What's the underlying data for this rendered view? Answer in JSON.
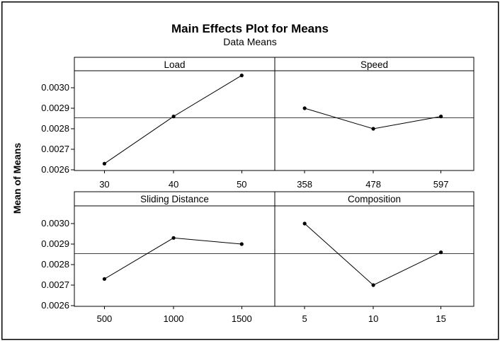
{
  "chart_data": {
    "type": "line",
    "title": "Main Effects Plot for Means",
    "subtitle": "Data Means",
    "ylabel": "Mean of Means",
    "xlabel": "",
    "grid": false,
    "legend": false,
    "layout_hint": "2x2 trellis of main-effects panels sharing one y-axis; horizontal grand-mean reference line across each row",
    "ylim": [
      0.002593,
      0.003086
    ],
    "y_ticks": [
      0.0026,
      0.0027,
      0.0028,
      0.0029,
      0.003
    ],
    "y_tick_labels": [
      "0.0026",
      "0.0027",
      "0.0028",
      "0.0029",
      "0.0030"
    ],
    "reference_line_mean": 0.002853,
    "panels": [
      {
        "label": "Load",
        "row": 0,
        "col": 0,
        "categories": [
          "30",
          "40",
          "50"
        ],
        "values": [
          0.00263,
          0.00286,
          0.00306
        ]
      },
      {
        "label": "Speed",
        "row": 0,
        "col": 1,
        "categories": [
          "358",
          "478",
          "597"
        ],
        "values": [
          0.0029,
          0.0028,
          0.00286
        ]
      },
      {
        "label": "Sliding Distance",
        "row": 1,
        "col": 0,
        "categories": [
          "500",
          "1000",
          "1500"
        ],
        "values": [
          0.00273,
          0.00293,
          0.0029
        ]
      },
      {
        "label": "Composition",
        "row": 1,
        "col": 1,
        "categories": [
          "5",
          "10",
          "15"
        ],
        "values": [
          0.003,
          0.0027,
          0.00286
        ]
      }
    ],
    "colors": {
      "series_line": "#000000",
      "marker": "#000000",
      "reference_line": "#404040",
      "panel_border": "#000000",
      "background": "#ffffff",
      "text": "#000000"
    }
  }
}
